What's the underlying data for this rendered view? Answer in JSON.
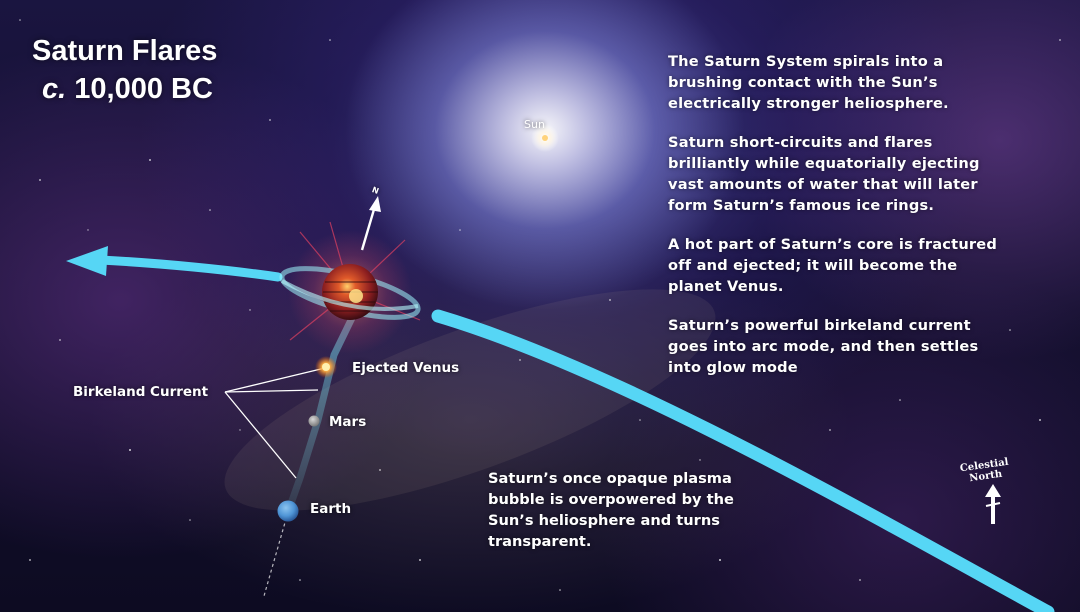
{
  "title": {
    "line1": "Saturn Flares",
    "circa": "c.",
    "year": "10,000 BC"
  },
  "description": [
    "The Saturn System spirals into a\nbrushing contact with the Sun’s\nelectrically stronger heliosphere.",
    "Saturn short-circuits and flares\nbrilliantly while equatorially ejecting\nvast amounts of water that will later\nform Saturn’s famous ice rings.",
    "A hot part of Saturn’s core is fractured\noff and ejected; it will become the\nplanet Venus.",
    "Saturn’s powerful birkeland current\ngoes into arc mode, and then settles\ninto glow mode"
  ],
  "labels": {
    "sun": "Sun",
    "ejected_venus": "Ejected Venus",
    "mars": "Mars",
    "earth": "Earth",
    "birkeland_current": "Birkeland Current",
    "axis_marker": "N",
    "celestial_north": "Celestial\nNorth"
  },
  "bottom_text": "Saturn’s once opaque plasma\nbubble is overpowered by the\nSun’s heliosphere and turns\ntransparent.",
  "colors": {
    "orbit": "#56d6f5",
    "sun_glow": "#ffffff",
    "saturn": "#b0302a",
    "venus_glow": "#ffb347",
    "mars": "#9b9b9b",
    "earth": "#4f95d6",
    "text": "#ffffff"
  },
  "icons": [
    "sun-icon",
    "saturn-icon",
    "venus-icon",
    "mars-icon",
    "earth-icon",
    "arrow-icon",
    "north-arrow-icon"
  ]
}
